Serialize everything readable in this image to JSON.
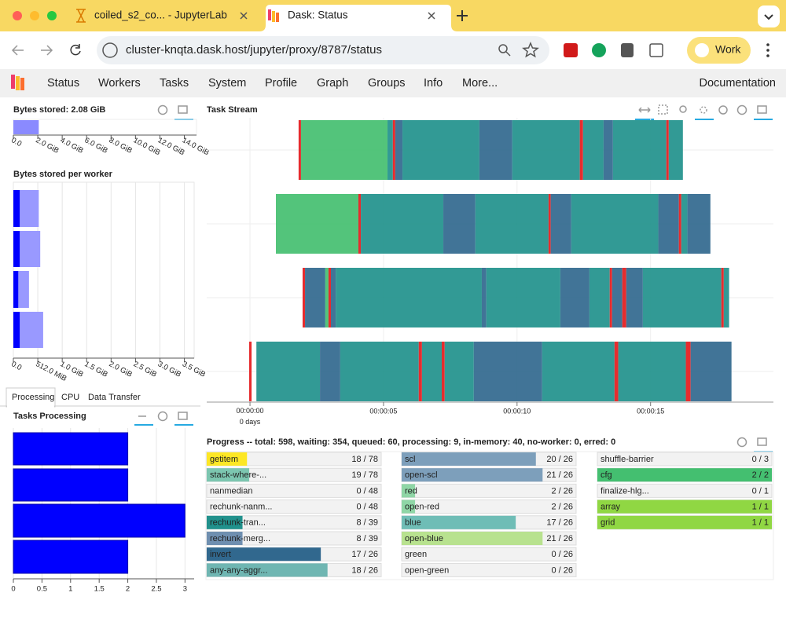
{
  "browser": {
    "tabs": [
      "coiled_s2_co... - JupyterLab",
      "Dask: Status"
    ],
    "url": "cluster-knqta.dask.host/jupyter/proxy/8787/status",
    "profile": "Work"
  },
  "nav": {
    "items": [
      "Status",
      "Workers",
      "Tasks",
      "System",
      "Profile",
      "Graph",
      "Groups",
      "Info",
      "More..."
    ],
    "documentation": "Documentation"
  },
  "bytes_stored": {
    "type": "bar",
    "title": "Bytes stored: 2.08 GiB",
    "values": [
      2.08
    ],
    "color": "#8a8aff",
    "xlim": [
      0,
      15
    ],
    "xticks": [
      {
        "value": 0,
        "label": "0.0"
      },
      {
        "value": 2,
        "label": "2.0 GiB"
      },
      {
        "value": 4,
        "label": "4.0 GiB"
      },
      {
        "value": 6,
        "label": "6.0 GiB"
      },
      {
        "value": 8,
        "label": "8.0 GiB"
      },
      {
        "value": 10,
        "label": "10.0 GiB"
      },
      {
        "value": 12,
        "label": "12.0 GiB"
      },
      {
        "value": 14,
        "label": "14.0 GiB"
      }
    ]
  },
  "bytes_per_worker": {
    "type": "bar",
    "title": "Bytes stored per worker",
    "grid": true,
    "xlim": [
      0,
      3.7
    ],
    "series": [
      {
        "color": "#9999ff",
        "values": [
          0.52,
          0.55,
          0.32,
          0.61
        ]
      },
      {
        "color": "#0000ff",
        "values": [
          0.13,
          0.13,
          0.1,
          0.13
        ]
      }
    ],
    "xticks": [
      {
        "value": 0,
        "label": "0.0"
      },
      {
        "value": 0.5,
        "label": "512.0 MiB"
      },
      {
        "value": 1,
        "label": "1.0 GiB"
      },
      {
        "value": 1.5,
        "label": "1.5 GiB"
      },
      {
        "value": 2,
        "label": "2.0 GiB"
      },
      {
        "value": 2.5,
        "label": "2.5 GiB"
      },
      {
        "value": 3,
        "label": "3.0 GiB"
      },
      {
        "value": 3.5,
        "label": "3.5 GiB"
      }
    ]
  },
  "tabs": [
    "Processing",
    "CPU",
    "Data Transfer"
  ],
  "tasks_processing": {
    "type": "bar",
    "title": "Tasks Processing",
    "values": [
      2,
      2,
      3,
      2
    ],
    "color": "#0000ff",
    "xlim": [
      0,
      3.16
    ],
    "xticks": [
      0,
      0.5,
      1,
      1.5,
      2,
      2.5,
      3
    ],
    "grid": true
  },
  "task_stream": {
    "type": "gantt",
    "title": "Task Stream",
    "xlim": [
      -1.62,
      19.6
    ],
    "xticks": [
      {
        "value": 0,
        "label": "00:00:00\n0 days"
      },
      {
        "value": 5,
        "label": "00:00:05"
      },
      {
        "value": 10,
        "label": "00:00:10"
      },
      {
        "value": 15,
        "label": "00:00:15"
      }
    ],
    "rows": [
      [
        {
          "start": 1.82,
          "stop": 1.91,
          "color": "#e41a1c"
        },
        {
          "start": 1.91,
          "stop": 5.15,
          "color": "#44bf70"
        },
        {
          "start": 5.15,
          "stop": 5.35,
          "color": "#21918c"
        },
        {
          "start": 5.35,
          "stop": 5.44,
          "color": "#e41a1c"
        },
        {
          "start": 5.44,
          "stop": 5.71,
          "color": "#31688e"
        },
        {
          "start": 5.71,
          "stop": 8.59,
          "color": "#21918c"
        },
        {
          "start": 8.59,
          "stop": 9.82,
          "color": "#31688e"
        },
        {
          "start": 9.82,
          "stop": 12.35,
          "color": "#21918c"
        },
        {
          "start": 12.35,
          "stop": 12.47,
          "color": "#e41a1c"
        },
        {
          "start": 12.47,
          "stop": 13.24,
          "color": "#21918c"
        },
        {
          "start": 13.24,
          "stop": 13.59,
          "color": "#31688e"
        },
        {
          "start": 13.59,
          "stop": 15.59,
          "color": "#21918c"
        },
        {
          "start": 15.59,
          "stop": 15.68,
          "color": "#e41a1c"
        },
        {
          "start": 15.68,
          "stop": 16.21,
          "color": "#21918c"
        }
      ],
      [
        {
          "start": 0.97,
          "stop": 4.06,
          "color": "#44bf70"
        },
        {
          "start": 4.06,
          "stop": 4.15,
          "color": "#e41a1c"
        },
        {
          "start": 4.15,
          "stop": 7.24,
          "color": "#21918c"
        },
        {
          "start": 7.24,
          "stop": 8.44,
          "color": "#31688e"
        },
        {
          "start": 8.44,
          "stop": 11.18,
          "color": "#21918c"
        },
        {
          "start": 11.18,
          "stop": 11.26,
          "color": "#e41a1c"
        },
        {
          "start": 11.26,
          "stop": 12.03,
          "color": "#31688e"
        },
        {
          "start": 12.03,
          "stop": 15.29,
          "color": "#21918c"
        },
        {
          "start": 15.29,
          "stop": 16.06,
          "color": "#31688e"
        },
        {
          "start": 16.06,
          "stop": 16.15,
          "color": "#e41a1c"
        },
        {
          "start": 16.15,
          "stop": 16.38,
          "color": "#21918c"
        },
        {
          "start": 16.38,
          "stop": 17.24,
          "color": "#31688e"
        }
      ],
      [
        {
          "start": 1.97,
          "stop": 2.06,
          "color": "#e41a1c"
        },
        {
          "start": 2.06,
          "stop": 2.82,
          "color": "#31688e"
        },
        {
          "start": 2.82,
          "stop": 2.94,
          "color": "#44bf70"
        },
        {
          "start": 2.94,
          "stop": 3.03,
          "color": "#e41a1c"
        },
        {
          "start": 3.03,
          "stop": 3.21,
          "color": "#31688e"
        },
        {
          "start": 3.21,
          "stop": 8.68,
          "color": "#21918c"
        },
        {
          "start": 8.68,
          "stop": 8.85,
          "color": "#31688e"
        },
        {
          "start": 8.85,
          "stop": 11.62,
          "color": "#21918c"
        },
        {
          "start": 11.62,
          "stop": 12.71,
          "color": "#31688e"
        },
        {
          "start": 12.71,
          "stop": 13.47,
          "color": "#21918c"
        },
        {
          "start": 13.47,
          "stop": 13.56,
          "color": "#e41a1c"
        },
        {
          "start": 13.56,
          "stop": 13.94,
          "color": "#31688e"
        },
        {
          "start": 13.94,
          "stop": 14.09,
          "color": "#e41a1c"
        },
        {
          "start": 14.09,
          "stop": 14.71,
          "color": "#31688e"
        },
        {
          "start": 14.71,
          "stop": 17.65,
          "color": "#21918c"
        },
        {
          "start": 17.65,
          "stop": 17.74,
          "color": "#e41a1c"
        },
        {
          "start": 17.74,
          "stop": 17.94,
          "color": "#21918c"
        }
      ],
      [
        {
          "start": -0.03,
          "stop": 0.06,
          "color": "#e41a1c"
        },
        {
          "start": 0.24,
          "stop": 2.62,
          "color": "#21918c"
        },
        {
          "start": 2.62,
          "stop": 3.38,
          "color": "#31688e"
        },
        {
          "start": 3.38,
          "stop": 6.32,
          "color": "#21918c"
        },
        {
          "start": 6.32,
          "stop": 6.44,
          "color": "#e41a1c"
        },
        {
          "start": 6.44,
          "stop": 7.18,
          "color": "#21918c"
        },
        {
          "start": 7.18,
          "stop": 7.29,
          "color": "#e41a1c"
        },
        {
          "start": 7.29,
          "stop": 8.38,
          "color": "#21918c"
        },
        {
          "start": 8.38,
          "stop": 10.94,
          "color": "#31688e"
        },
        {
          "start": 10.94,
          "stop": 13.65,
          "color": "#21918c"
        },
        {
          "start": 13.65,
          "stop": 13.79,
          "color": "#e41a1c"
        },
        {
          "start": 13.79,
          "stop": 16.32,
          "color": "#21918c"
        },
        {
          "start": 16.32,
          "stop": 16.5,
          "color": "#e41a1c"
        },
        {
          "start": 16.5,
          "stop": 18.03,
          "color": "#31688e"
        }
      ]
    ]
  },
  "progress": {
    "title": "Progress -- total: 598, waiting: 354, queued: 60, processing: 9, in-memory: 40, no-worker: 0, erred: 0",
    "columns": [
      [
        {
          "name": "getitem",
          "label": "18 / 78",
          "done": 18,
          "total": 78,
          "color": "#fde725"
        },
        {
          "name": "stack-where-...",
          "label": "19 / 78",
          "done": 19,
          "total": 78,
          "color": "#7cc6b0"
        },
        {
          "name": "nanmedian",
          "label": "0 / 48",
          "done": 0,
          "total": 48,
          "color": "#440154"
        },
        {
          "name": "rechunk-nanm...",
          "label": "0 / 48",
          "done": 0,
          "total": 48,
          "color": "#3b528b"
        },
        {
          "name": "rechunk-tran...",
          "label": "8 / 39",
          "done": 8,
          "total": 39,
          "color": "#21918c"
        },
        {
          "name": "rechunk-merg...",
          "label": "8 / 39",
          "done": 8,
          "total": 39,
          "color": "#6f8fb0"
        },
        {
          "name": "invert",
          "label": "17 / 26",
          "done": 17,
          "total": 26,
          "color": "#31688e"
        },
        {
          "name": "any-any-aggr...",
          "label": "18 / 26",
          "done": 18,
          "total": 26,
          "color": "#6fb6b2"
        }
      ],
      [
        {
          "name": "scl",
          "label": "20 / 26",
          "done": 20,
          "total": 26,
          "color": "#7d9fbb"
        },
        {
          "name": "open-scl",
          "label": "21 / 26",
          "done": 21,
          "total": 26,
          "color": "#7d9fbb"
        },
        {
          "name": "red",
          "label": "2 / 26",
          "done": 2,
          "total": 26,
          "color": "#8fd6a6"
        },
        {
          "name": "open-red",
          "label": "2 / 26",
          "done": 2,
          "total": 26,
          "color": "#8fd6a6"
        },
        {
          "name": "blue",
          "label": "17 / 26",
          "done": 17,
          "total": 26,
          "color": "#6fbdb6"
        },
        {
          "name": "open-blue",
          "label": "21 / 26",
          "done": 21,
          "total": 26,
          "color": "#b8e28f"
        },
        {
          "name": "green",
          "label": "0 / 26",
          "done": 0,
          "total": 26,
          "color": "#44bf70"
        },
        {
          "name": "open-green",
          "label": "0 / 26",
          "done": 0,
          "total": 26,
          "color": "#44bf70"
        }
      ],
      [
        {
          "name": "shuffle-barrier",
          "label": "0 / 3",
          "done": 0,
          "total": 3,
          "color": "#fde725"
        },
        {
          "name": "cfg",
          "label": "2 / 2",
          "done": 2,
          "total": 2,
          "color": "#44bf70"
        },
        {
          "name": "finalize-hlg...",
          "label": "0 / 1",
          "done": 0,
          "total": 1,
          "color": "#fde725"
        },
        {
          "name": "array",
          "label": "1 / 1",
          "done": 1,
          "total": 1,
          "color": "#90d743"
        },
        {
          "name": "grid",
          "label": "1 / 1",
          "done": 1,
          "total": 1,
          "color": "#90d743"
        }
      ]
    ]
  }
}
